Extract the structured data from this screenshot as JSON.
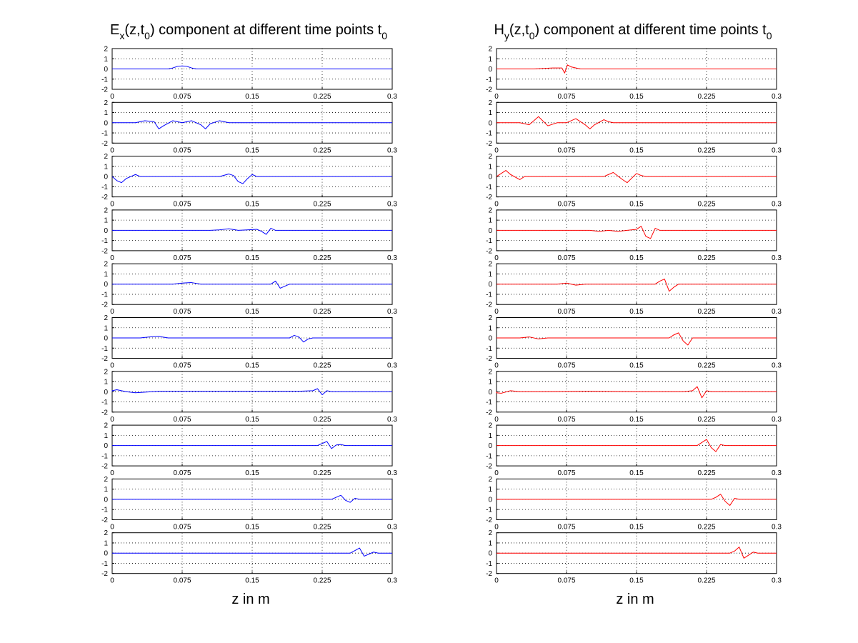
{
  "figure": {
    "columns": [
      {
        "title_main": "E",
        "title_sub1": "x",
        "title_mid": "(z,t",
        "title_sub2": "0",
        "title_rest": ") component at different time points t",
        "title_sub3": "0",
        "xlabel": "z in m",
        "color": "#0000ff"
      },
      {
        "title_main": "H",
        "title_sub1": "y",
        "title_mid": "(z,t",
        "title_sub2": "0",
        "title_rest": ") component at different time points t",
        "title_sub3": "0",
        "xlabel": "z in m",
        "color": "#ff0000"
      }
    ]
  },
  "chart_data": [
    {
      "type": "line",
      "title": "Ex(z,t0) component at different time points t0",
      "xlabel": "z in m",
      "ylabel": "",
      "xlim": [
        0,
        0.3
      ],
      "ylim": [
        -2,
        2
      ],
      "xticks": [
        "0",
        "0.075",
        "0.15",
        "0.225",
        "0.3"
      ],
      "yticks": [
        "2",
        "1",
        "0",
        "-1",
        "-2"
      ],
      "grid": true,
      "color": "#0000ff",
      "panels": [
        {
          "time_index": 1,
          "x": [
            0.06,
            0.065,
            0.07,
            0.075,
            0.08,
            0.085,
            0.09
          ],
          "y": [
            0,
            0.1,
            0.25,
            0.3,
            0.25,
            0.1,
            0
          ]
        },
        {
          "time_index": 2,
          "x": [
            0.025,
            0.035,
            0.045,
            0.05,
            0.055,
            0.065,
            0.075,
            0.085,
            0.095,
            0.1,
            0.105,
            0.115,
            0.12,
            0.125
          ],
          "y": [
            0,
            0.2,
            0.1,
            -0.6,
            -0.3,
            0.2,
            0,
            0.2,
            -0.2,
            -0.6,
            -0.1,
            0.2,
            0.1,
            0
          ]
        },
        {
          "time_index": 3,
          "x": [
            0,
            0.005,
            0.01,
            0.015,
            0.025,
            0.03,
            0.115,
            0.125,
            0.13,
            0.135,
            0.14,
            0.145,
            0.15,
            0.155
          ],
          "y": [
            0,
            -0.4,
            -0.6,
            -0.2,
            0.2,
            0,
            0,
            0.25,
            0.1,
            -0.5,
            -0.7,
            -0.2,
            0.2,
            0
          ]
        },
        {
          "time_index": 4,
          "x": [
            0.105,
            0.115,
            0.125,
            0.135,
            0.145,
            0.155,
            0.16,
            0.165,
            0.17,
            0.175
          ],
          "y": [
            0,
            0.05,
            0.15,
            0,
            0.05,
            0.1,
            -0.1,
            -0.4,
            0.2,
            0
          ]
        },
        {
          "time_index": 5,
          "x": [
            0.065,
            0.075,
            0.085,
            0.095,
            0.17,
            0.175,
            0.18,
            0.185,
            0.19
          ],
          "y": [
            0,
            0.1,
            0.15,
            0,
            0,
            0.3,
            -0.4,
            -0.2,
            0
          ]
        },
        {
          "time_index": 6,
          "x": [
            0.03,
            0.04,
            0.05,
            0.06,
            0.19,
            0.195,
            0.2,
            0.205,
            0.21,
            0.215
          ],
          "y": [
            0,
            0.1,
            0.15,
            0,
            0,
            0.25,
            0.1,
            -0.4,
            -0.1,
            0
          ]
        },
        {
          "time_index": 7,
          "x": [
            0,
            0.005,
            0.015,
            0.025,
            0.05,
            0.1,
            0.15,
            0.2,
            0.215,
            0.22,
            0.225,
            0.23,
            0.235
          ],
          "y": [
            0.1,
            0.2,
            0,
            -0.1,
            0.05,
            0.05,
            0.05,
            0.05,
            0.1,
            0.3,
            -0.3,
            0.1,
            0
          ]
        },
        {
          "time_index": 8,
          "x": [
            0.22,
            0.225,
            0.23,
            0.235,
            0.24,
            0.245,
            0.25
          ],
          "y": [
            0,
            0.2,
            0.4,
            -0.3,
            0.05,
            0.1,
            0
          ]
        },
        {
          "time_index": 9,
          "x": [
            0.235,
            0.24,
            0.245,
            0.25,
            0.255,
            0.26,
            0.265
          ],
          "y": [
            0,
            0.2,
            0.4,
            -0.1,
            -0.3,
            0.1,
            0
          ]
        },
        {
          "time_index": 10,
          "x": [
            0.255,
            0.26,
            0.265,
            0.27,
            0.275,
            0.28,
            0.285
          ],
          "y": [
            0,
            0.25,
            0.5,
            -0.3,
            -0.1,
            0.1,
            0
          ]
        }
      ]
    },
    {
      "type": "line",
      "title": "Hy(z,t0) component at different time points t0",
      "xlabel": "z in m",
      "ylabel": "",
      "xlim": [
        0,
        0.3
      ],
      "ylim": [
        -2,
        2
      ],
      "xticks": [
        "0",
        "0.075",
        "0.15",
        "0.225",
        "0.3"
      ],
      "yticks": [
        "2",
        "1",
        "0",
        "-1",
        "-2"
      ],
      "grid": true,
      "color": "#ff0000",
      "panels": [
        {
          "time_index": 1,
          "x": [
            0.04,
            0.06,
            0.07,
            0.073,
            0.076,
            0.08,
            0.085,
            0.09
          ],
          "y": [
            0,
            0.1,
            0.1,
            -0.4,
            0.4,
            0.2,
            0.1,
            0
          ]
        },
        {
          "time_index": 2,
          "x": [
            0.025,
            0.035,
            0.045,
            0.055,
            0.065,
            0.075,
            0.085,
            0.095,
            0.1,
            0.105,
            0.115,
            0.12,
            0.125
          ],
          "y": [
            0,
            -0.2,
            0.6,
            -0.3,
            0,
            0,
            0.4,
            -0.2,
            -0.6,
            -0.2,
            0.3,
            0.1,
            0
          ]
        },
        {
          "time_index": 3,
          "x": [
            0,
            0.005,
            0.01,
            0.015,
            0.025,
            0.03,
            0.115,
            0.12,
            0.125,
            0.135,
            0.14,
            0.15,
            0.155,
            0.16
          ],
          "y": [
            0,
            0.3,
            0.6,
            0.2,
            -0.3,
            0,
            0,
            0.2,
            0.4,
            -0.3,
            -0.6,
            0.3,
            0.1,
            0
          ]
        },
        {
          "time_index": 4,
          "x": [
            0.1,
            0.11,
            0.12,
            0.13,
            0.14,
            0.15,
            0.155,
            0.16,
            0.165,
            0.17,
            0.175
          ],
          "y": [
            0,
            -0.1,
            0,
            -0.1,
            0,
            0.1,
            0.4,
            -0.6,
            -0.8,
            0.2,
            0
          ]
        },
        {
          "time_index": 5,
          "x": [
            0.065,
            0.075,
            0.085,
            0.095,
            0.17,
            0.175,
            0.18,
            0.185,
            0.19,
            0.195
          ],
          "y": [
            0,
            0.1,
            -0.1,
            0,
            0,
            0.3,
            0.5,
            -0.7,
            -0.3,
            0
          ]
        },
        {
          "time_index": 6,
          "x": [
            0.025,
            0.035,
            0.045,
            0.055,
            0.185,
            0.19,
            0.195,
            0.2,
            0.205,
            0.21
          ],
          "y": [
            0,
            0.1,
            -0.1,
            0,
            0,
            0.3,
            0.5,
            -0.3,
            -0.7,
            0
          ]
        },
        {
          "time_index": 7,
          "x": [
            0,
            0.005,
            0.015,
            0.025,
            0.05,
            0.1,
            0.15,
            0.2,
            0.21,
            0.215,
            0.22,
            0.225,
            0.23
          ],
          "y": [
            -0.1,
            -0.15,
            0.1,
            0,
            0,
            0.05,
            0,
            0,
            0.1,
            0.5,
            -0.6,
            0.1,
            0
          ]
        },
        {
          "time_index": 8,
          "x": [
            0.215,
            0.22,
            0.225,
            0.23,
            0.235,
            0.24,
            0.245
          ],
          "y": [
            0,
            0.3,
            0.6,
            -0.2,
            -0.6,
            0.1,
            0
          ]
        },
        {
          "time_index": 9,
          "x": [
            0.23,
            0.235,
            0.24,
            0.245,
            0.25,
            0.255,
            0.26
          ],
          "y": [
            0,
            0.2,
            0.5,
            -0.2,
            -0.6,
            0.1,
            0
          ]
        },
        {
          "time_index": 10,
          "x": [
            0.25,
            0.255,
            0.26,
            0.265,
            0.27,
            0.275,
            0.28
          ],
          "y": [
            0,
            0.2,
            0.6,
            -0.5,
            -0.2,
            0.1,
            0
          ]
        }
      ]
    }
  ]
}
